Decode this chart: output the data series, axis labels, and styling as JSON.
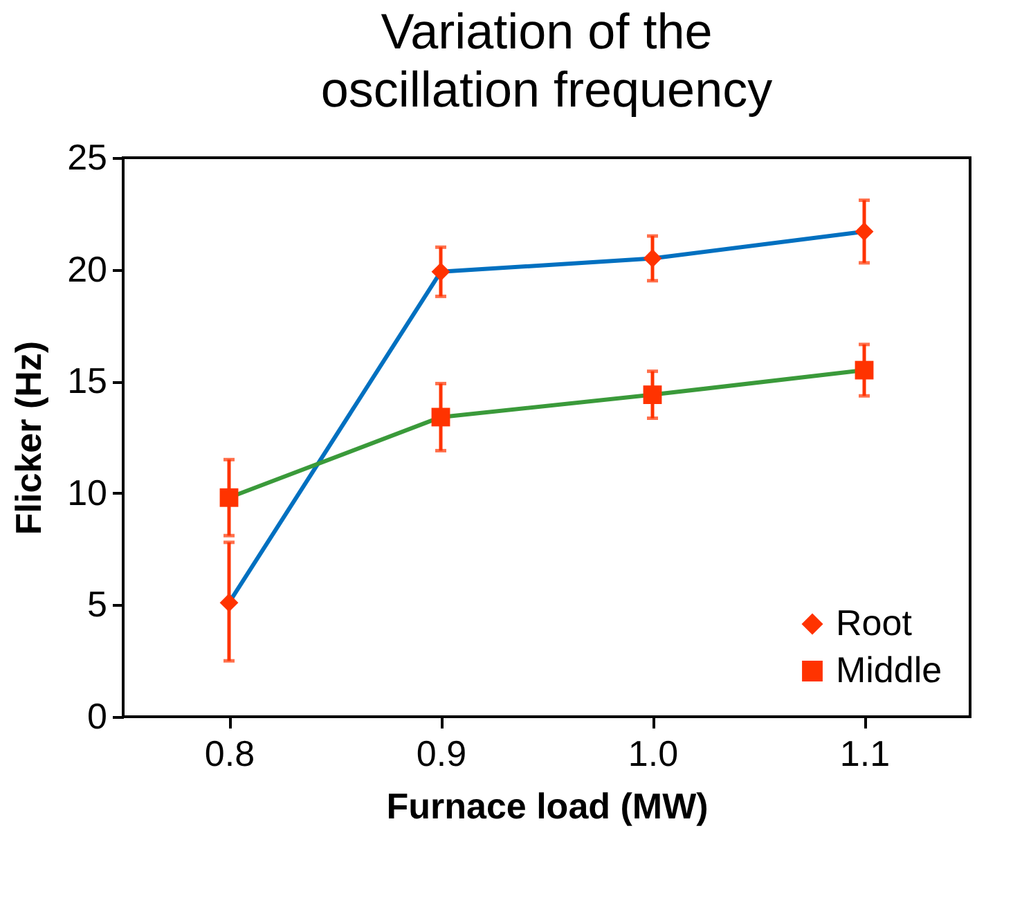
{
  "chart_data": {
    "type": "line",
    "title": "Variation of the oscillation frequency",
    "xlabel": "Furnace load (MW)",
    "ylabel": "Flicker (Hz)",
    "x": [
      0.8,
      0.9,
      1.0,
      1.1
    ],
    "series": [
      {
        "name": "Root",
        "color": "#0070c0",
        "colors": [
          "#ff3300",
          "#ff3300",
          "#ff3300",
          "#ff3300"
        ],
        "marker": "diamond",
        "values": [
          5.1,
          19.9,
          20.5,
          21.7
        ],
        "errors": [
          [
            2.5,
            7.8
          ],
          1.1,
          1.0,
          1.4
        ]
      },
      {
        "name": "Middle",
        "color": "#3a9a3a",
        "colors": [
          "#ff3300",
          "#ff3300",
          "#ff3300",
          "#ff3300"
        ],
        "marker": "square",
        "values": [
          9.8,
          13.4,
          14.4,
          15.5
        ],
        "errors": [
          1.7,
          1.5,
          1.05,
          1.15
        ]
      }
    ],
    "xlim": [
      0.75,
      1.15
    ],
    "xticks": [
      0.8,
      0.9,
      {
        "value": 1.0,
        "label": "1.0"
      },
      1.1
    ],
    "ylim": [
      0,
      25
    ],
    "yticks": [
      0,
      5,
      10,
      15,
      20,
      25
    ],
    "legend": "bottom right",
    "grid": false
  }
}
